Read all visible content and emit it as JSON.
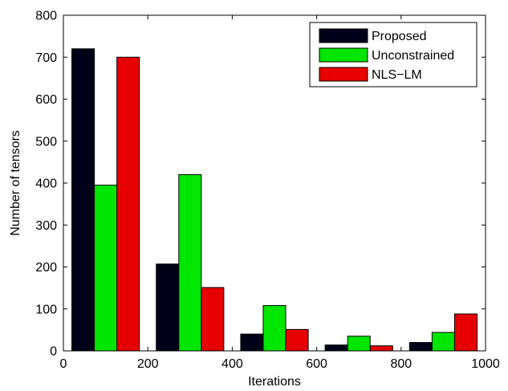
{
  "chart_data": {
    "type": "bar",
    "title": "",
    "xlabel": "Iterations",
    "ylabel": "Number of tensors",
    "x": [
      100,
      300,
      500,
      700,
      900
    ],
    "bin_width": 200,
    "xlim": [
      0,
      1000
    ],
    "ylim": [
      0,
      800
    ],
    "xticks": [
      0,
      200,
      400,
      600,
      800,
      1000
    ],
    "yticks": [
      0,
      100,
      200,
      300,
      400,
      500,
      600,
      700,
      800
    ],
    "grid": false,
    "legend_position": "top-right",
    "series": [
      {
        "name": "Proposed",
        "color": "#000019",
        "values": [
          720,
          207,
          40,
          14,
          20
        ]
      },
      {
        "name": "Unconstrained",
        "color": "#00e600",
        "values": [
          395,
          420,
          108,
          35,
          44
        ]
      },
      {
        "name": "NLS−LM",
        "color": "#e60000",
        "values": [
          700,
          151,
          51,
          12,
          88
        ]
      }
    ]
  }
}
